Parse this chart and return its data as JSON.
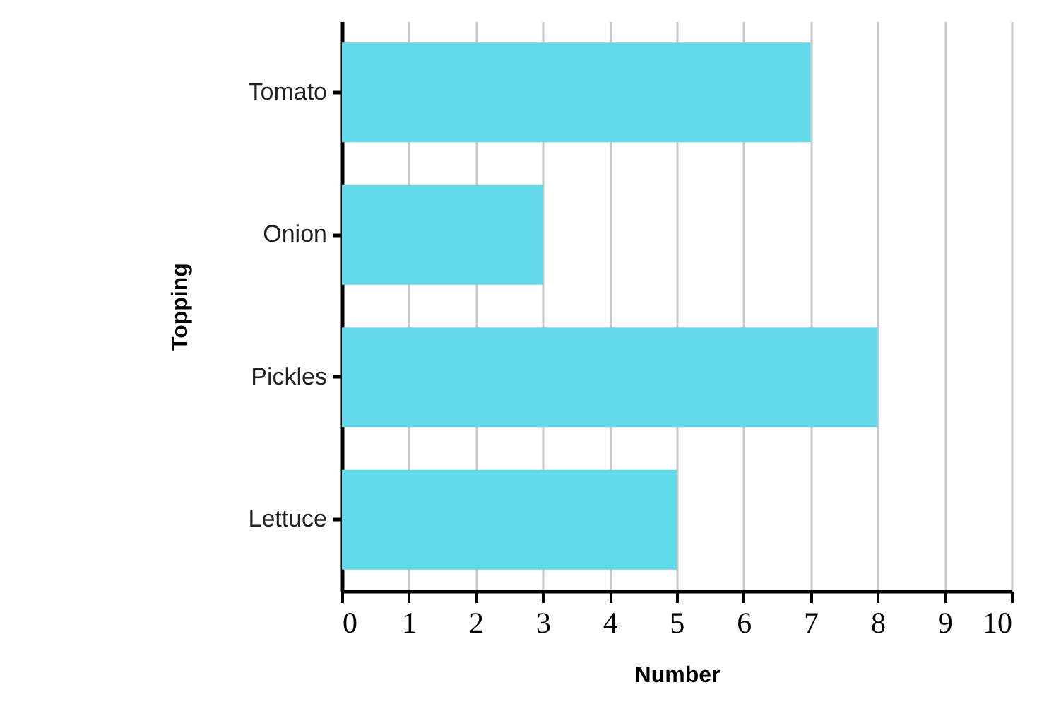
{
  "chart_data": {
    "type": "bar",
    "orientation": "horizontal",
    "xlabel": "Number",
    "ylabel": "Topping",
    "categories": [
      "Tomato",
      "Onion",
      "Pickles",
      "Lettuce"
    ],
    "values": [
      7,
      3,
      8,
      5
    ],
    "color": "#62d9e8",
    "xlim": [
      0,
      10
    ],
    "xticks": [
      0,
      1,
      2,
      3,
      4,
      5,
      6,
      7,
      8,
      9,
      10
    ],
    "grid": "x"
  }
}
